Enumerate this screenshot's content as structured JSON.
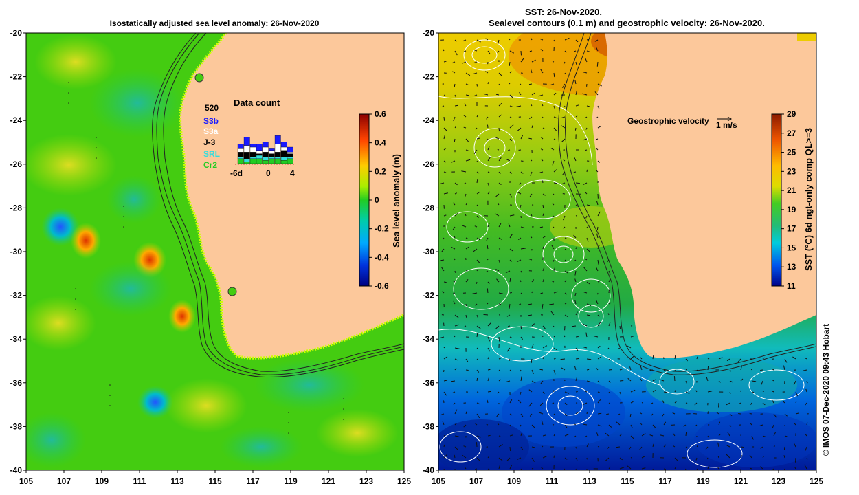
{
  "left_panel": {
    "title": "Isostatically adjusted sea level anomaly: 26-Nov-2020",
    "colorbar": {
      "label": "Sea level anomaly (m)",
      "ticks": [
        "0.6",
        "0.4",
        "0.2",
        "0",
        "-0.2",
        "-0.4",
        "-0.6"
      ]
    },
    "data_count": {
      "title": "Data count",
      "max_label": "520",
      "missions": [
        {
          "name": "S3b",
          "color": "#1a1aff"
        },
        {
          "name": "S3a",
          "color": "#ffffff"
        },
        {
          "name": "J-3",
          "color": "#000000"
        },
        {
          "name": "SRL",
          "color": "#33dddd"
        },
        {
          "name": "Cr2",
          "color": "#22cc22"
        }
      ],
      "x_labels": [
        "-6d",
        "0",
        "4"
      ]
    },
    "altimeter_markers": [
      "circle",
      "circle"
    ]
  },
  "right_panel": {
    "title_line1": "SST: 26-Nov-2020.",
    "title_line2": "Sealevel contours (0.1 m) and geostrophic velocity: 26-Nov-2020.",
    "velocity_legend": {
      "label": "Geostrophic velocity",
      "scale": "1 m/s"
    },
    "colorbar": {
      "label": "SST (°C) 6d ngt-only comp QL>=3",
      "ticks": [
        "29",
        "27",
        "25",
        "23",
        "21",
        "19",
        "17",
        "15",
        "13",
        "11"
      ]
    }
  },
  "axes": {
    "lat_labels": [
      "-20",
      "-22",
      "-24",
      "-26",
      "-28",
      "-30",
      "-32",
      "-34",
      "-36",
      "-38",
      "-40"
    ],
    "lon_labels": [
      "105",
      "107",
      "109",
      "111",
      "113",
      "115",
      "117",
      "119",
      "121",
      "123",
      "125"
    ]
  },
  "credit": "© IMOS 07-Dec-2020 09:43 Hobart",
  "colors": {
    "land": "#fcc89b",
    "sla_green": "#33cc00",
    "sst_warm": "#cc3300",
    "sst_cool": "#0033cc"
  }
}
